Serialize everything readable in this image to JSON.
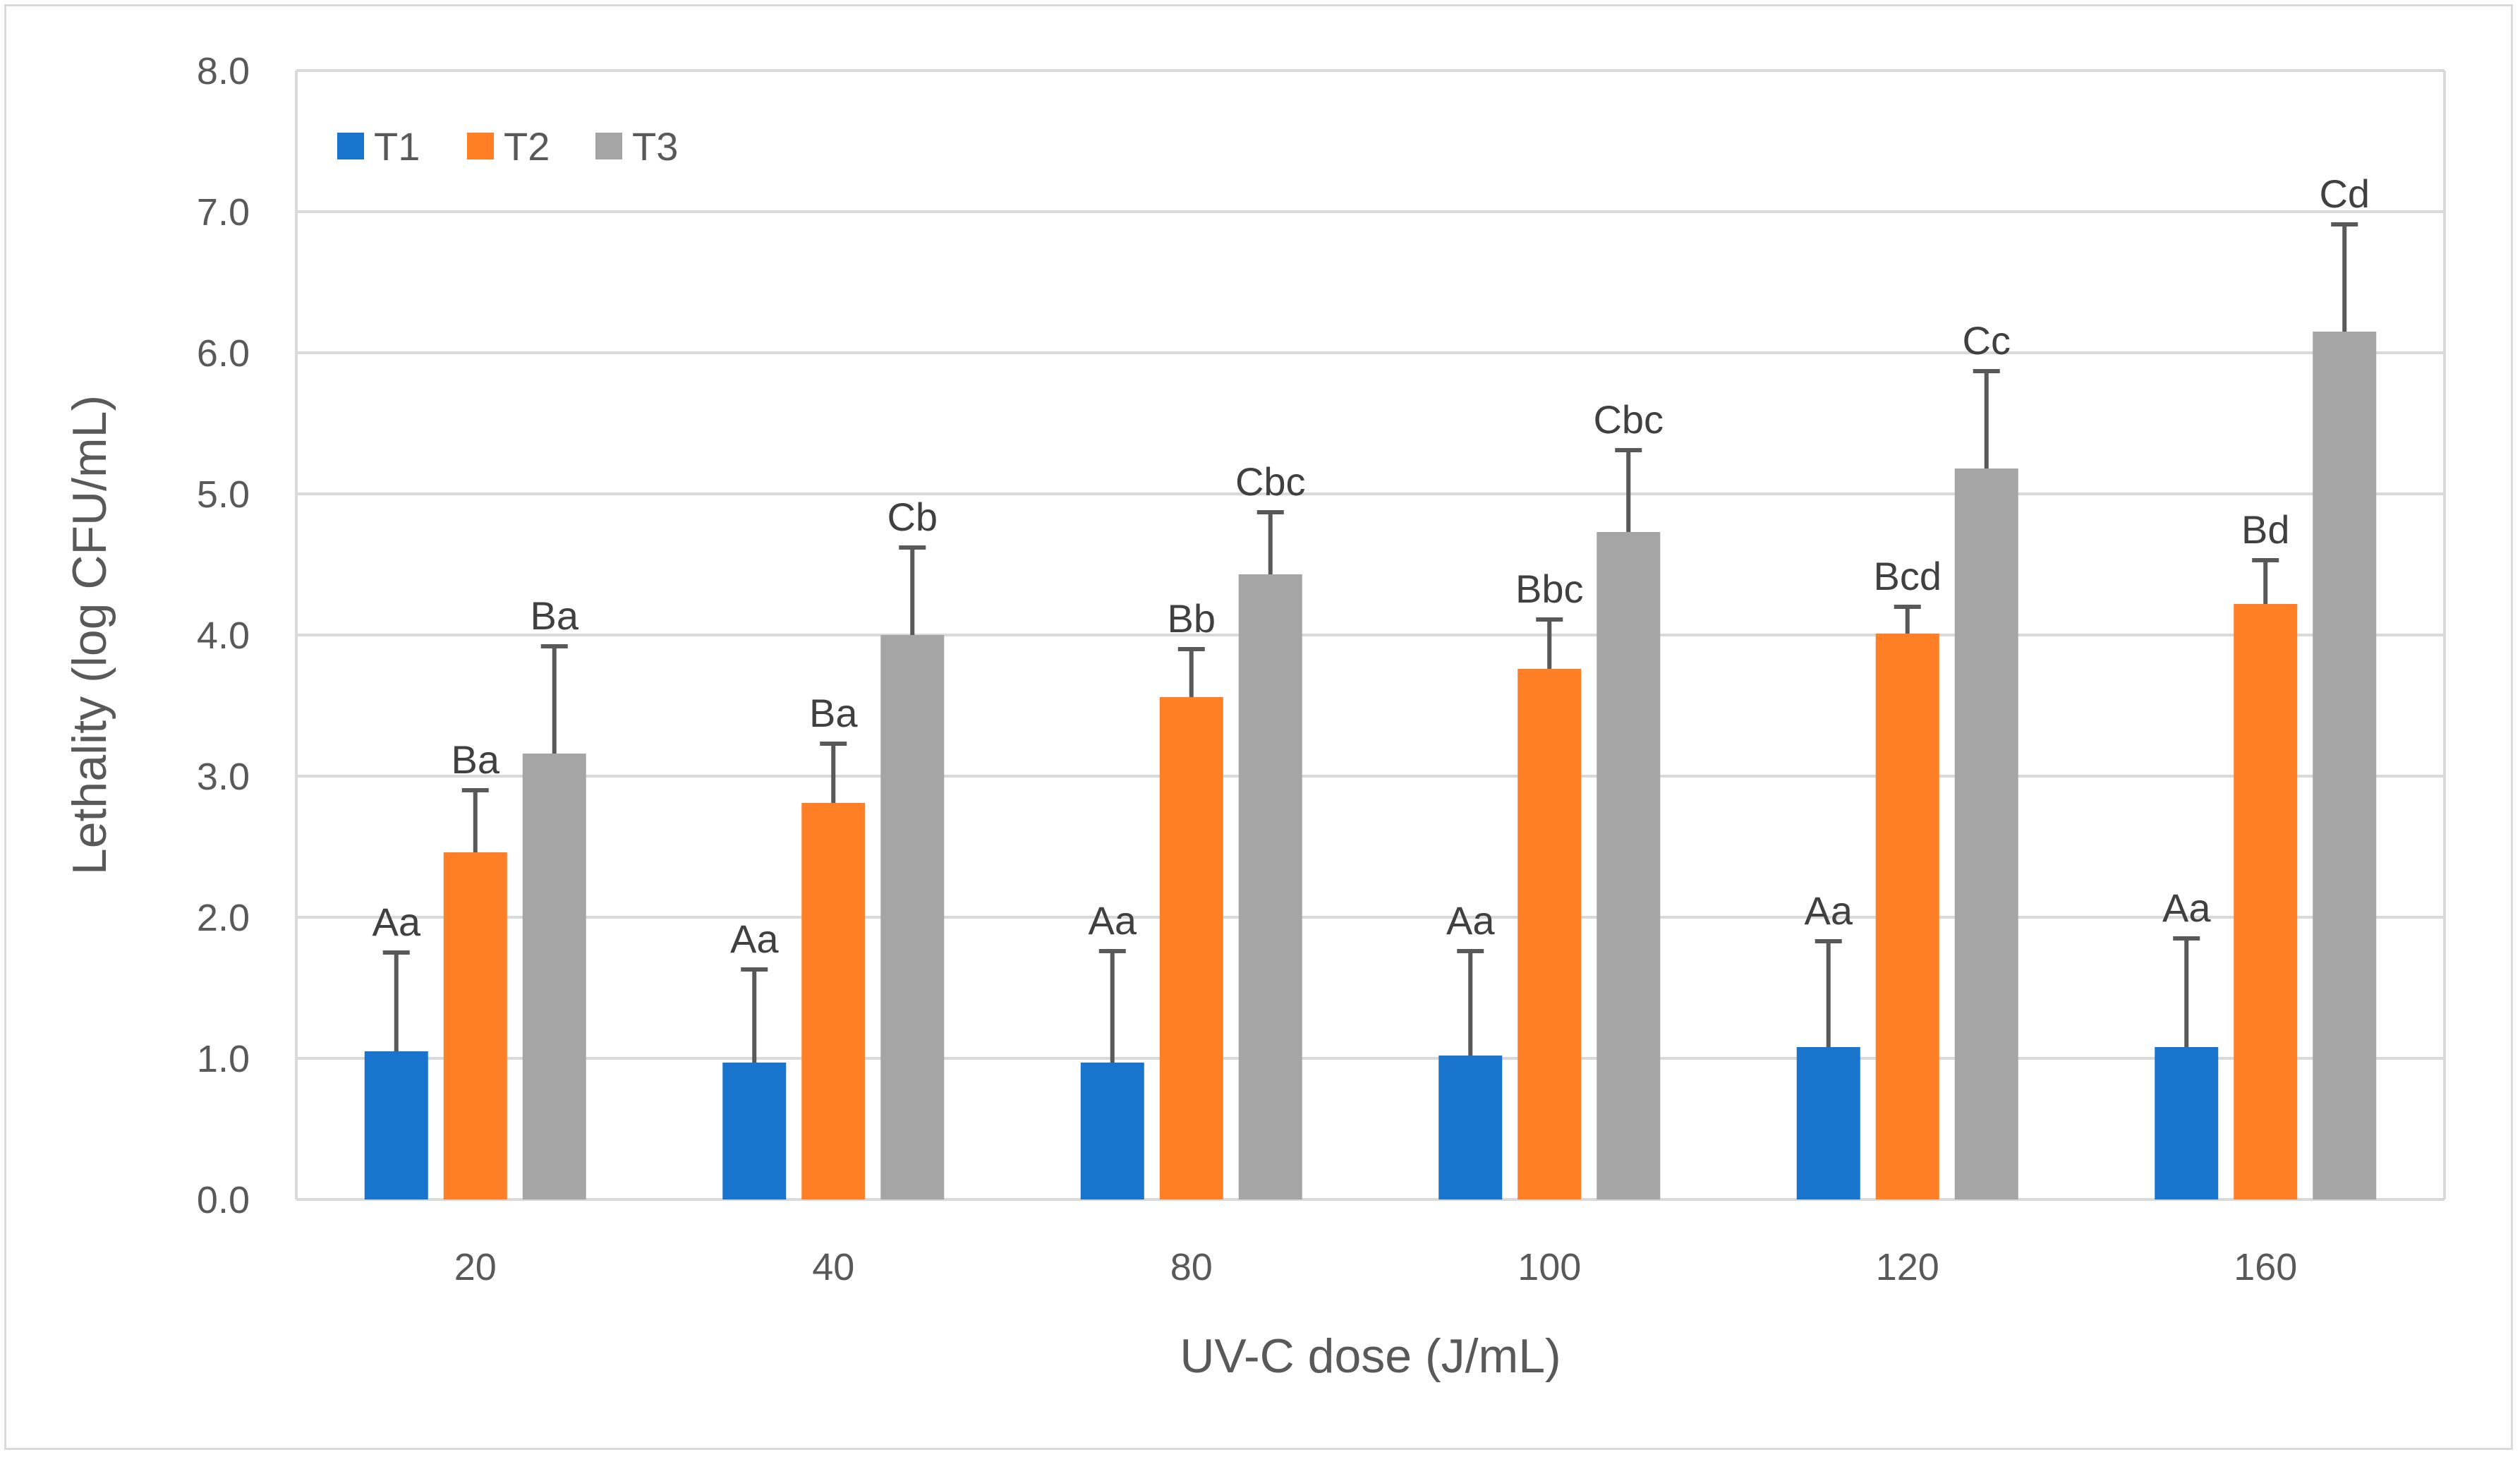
{
  "chart_data": {
    "type": "bar",
    "title": "",
    "xlabel": "UV-C dose (J/mL)",
    "ylabel": "Lethality (log CFU/mL)",
    "ylim": [
      0,
      8
    ],
    "ytick_step": 1,
    "ytick_labels": [
      "0.0",
      "1.0",
      "2.0",
      "3.0",
      "4.0",
      "5.0",
      "6.0",
      "7.0",
      "8.0"
    ],
    "grid": true,
    "legend_position": "top-left",
    "categories": [
      "20",
      "40",
      "80",
      "100",
      "120",
      "160"
    ],
    "series": [
      {
        "name": "T1",
        "color": "#1874cd",
        "values": [
          1.05,
          0.97,
          0.97,
          1.02,
          1.08,
          1.08
        ],
        "errors": [
          0.7,
          0.66,
          0.79,
          0.74,
          0.75,
          0.77
        ],
        "labels": [
          "Aa",
          "Aa",
          "Aa",
          "Aa",
          "Aa",
          "Aa"
        ]
      },
      {
        "name": "T2",
        "color": "#ff7f27",
        "values": [
          2.46,
          2.81,
          3.56,
          3.76,
          4.01,
          4.22
        ],
        "errors": [
          0.44,
          0.42,
          0.34,
          0.35,
          0.19,
          0.31
        ],
        "labels": [
          "Ba",
          "Ba",
          "Bb",
          "Bbc",
          "Bcd",
          "Bd"
        ]
      },
      {
        "name": "T3",
        "color": "#a5a5a5",
        "values": [
          3.16,
          4.0,
          4.43,
          4.73,
          5.18,
          6.15
        ],
        "errors": [
          0.76,
          0.62,
          0.44,
          0.58,
          0.69,
          0.76
        ],
        "labels": [
          "Ba",
          "Cb",
          "Cbc",
          "Cbc",
          "Cc",
          "Cd"
        ]
      }
    ]
  }
}
